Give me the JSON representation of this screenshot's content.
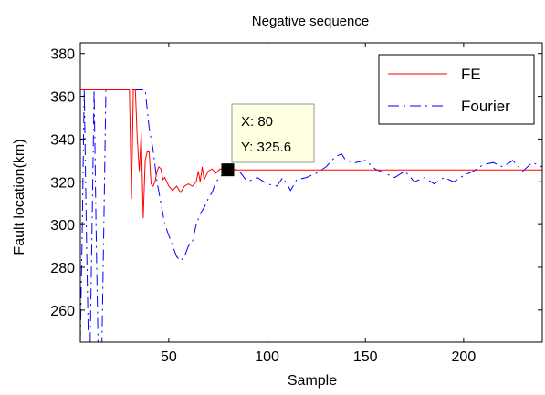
{
  "chart_data": {
    "type": "line",
    "title": "Negative sequence",
    "xlabel": "Sample",
    "ylabel": "Fault location(km)",
    "xlim": [
      5,
      240
    ],
    "ylim": [
      245,
      385
    ],
    "xticks": [
      50,
      100,
      150,
      200
    ],
    "yticks": [
      260,
      280,
      300,
      320,
      340,
      360,
      380
    ],
    "grid": false,
    "legend_position": "top-right",
    "series": [
      {
        "name": "FE",
        "color": "#ff0000",
        "style": "solid",
        "x": [
          5,
          30,
          31,
          32,
          33,
          34,
          35,
          36,
          37,
          38,
          39,
          40,
          41,
          42,
          43,
          44,
          45,
          46,
          47,
          48,
          49,
          50,
          52,
          54,
          56,
          58,
          60,
          62,
          64,
          65,
          66,
          67,
          68,
          70,
          72,
          74,
          76,
          78,
          80,
          100,
          150,
          200,
          240
        ],
        "y": [
          363,
          363,
          312,
          363,
          363,
          340,
          325,
          343,
          303,
          330,
          334,
          334,
          319,
          318,
          320,
          325,
          327,
          326,
          321,
          322,
          320,
          318,
          316,
          318,
          315,
          318,
          319,
          318,
          320,
          325,
          320,
          327,
          321,
          325,
          326,
          324,
          326,
          325.6,
          325.6,
          325.6,
          325.6,
          325.6,
          325.6
        ]
      },
      {
        "name": "Fourier",
        "color": "#0000ff",
        "style": "dash-dot",
        "x": [
          5,
          6,
          7,
          8,
          9,
          10,
          11,
          12,
          13,
          14,
          15,
          16,
          17,
          18,
          19,
          20,
          22,
          25,
          30,
          32,
          34,
          36,
          38,
          40,
          42,
          44,
          46,
          48,
          50,
          52,
          54,
          56,
          58,
          60,
          62,
          64,
          66,
          68,
          70,
          72,
          74,
          76,
          78,
          80,
          85,
          90,
          95,
          100,
          105,
          108,
          112,
          115,
          120,
          125,
          130,
          135,
          138,
          140,
          145,
          150,
          155,
          160,
          165,
          170,
          175,
          180,
          185,
          190,
          195,
          200,
          205,
          210,
          215,
          220,
          225,
          230,
          235,
          240
        ],
        "y": [
          245,
          300,
          363,
          300,
          250,
          245,
          300,
          363,
          300,
          245,
          245,
          245,
          300,
          363,
          363,
          363,
          363,
          363,
          363,
          363,
          363,
          363,
          363,
          345,
          335,
          320,
          310,
          300,
          295,
          290,
          285,
          283,
          285,
          290,
          292,
          300,
          305,
          308,
          312,
          315,
          320,
          322,
          324,
          325,
          326,
          320,
          322,
          319,
          318,
          322,
          316,
          321,
          322,
          324,
          327,
          332,
          333,
          330,
          329,
          330,
          326,
          324,
          322,
          325,
          320,
          322,
          319,
          322,
          320,
          323,
          325,
          328,
          329,
          327,
          330,
          325,
          329,
          327
        ]
      }
    ],
    "annotation": {
      "x": 80,
      "y": 325.6,
      "lines": [
        "X: 80",
        "Y: 325.6"
      ]
    }
  }
}
